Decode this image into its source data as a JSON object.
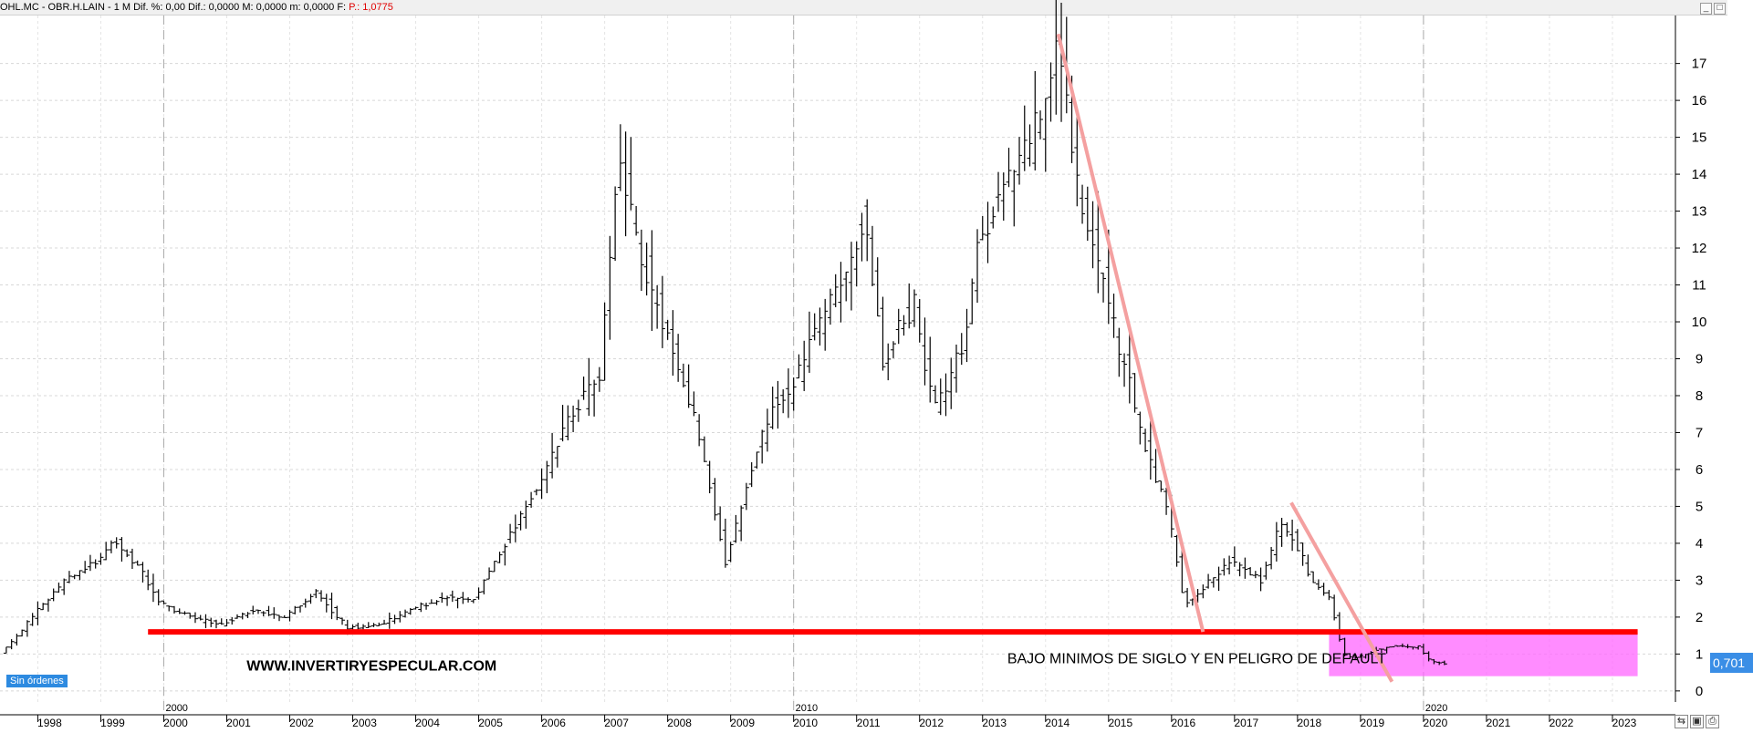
{
  "header": {
    "symbol": "OHL.MC - OBR.H.LAIN -",
    "timeframe": "1 M",
    "dif_pct": "Dif. %: 0,00",
    "dif": "Dif.: 0,0000",
    "max": "M: 0,0000",
    "min": "m: 0,0000",
    "f": "F:",
    "price": "P.: 1,0775"
  },
  "badge": "Sin órdenes",
  "price_tag": "0,701",
  "colors": {
    "support_line": "#ff0000",
    "trend_line": "#f4a0a0",
    "zone": "#ff66ff",
    "price_tag": "#3a8ee6",
    "bars": "#000000"
  },
  "chart_data": {
    "type": "ohlc",
    "timeframe": "monthly",
    "y_ticks": [
      0,
      1,
      2,
      3,
      4,
      5,
      6,
      7,
      8,
      9,
      10,
      11,
      12,
      13,
      14,
      15,
      16,
      17
    ],
    "ylim": [
      -0.3,
      18.3
    ],
    "x_tick_labels": [
      "1998",
      "1999",
      "2000",
      "2001",
      "2002",
      "2003",
      "2004",
      "2005",
      "2006",
      "2007",
      "2008",
      "2009",
      "2010",
      "2011",
      "2012",
      "2013",
      "2014",
      "2015",
      "2016",
      "2017",
      "2018",
      "2019",
      "2020",
      "2021",
      "2022",
      "2023"
    ],
    "decade_labels": [
      "2000",
      "2010",
      "2020"
    ],
    "xlim": [
      1997.4,
      2024.0
    ],
    "grid": true,
    "approx_path": [
      [
        1997.5,
        1.0
      ],
      [
        1998.0,
        2.0
      ],
      [
        1998.5,
        3.0
      ],
      [
        1999.0,
        3.5
      ],
      [
        1999.3,
        4.1
      ],
      [
        1999.7,
        3.3
      ],
      [
        2000.0,
        2.4
      ],
      [
        2000.5,
        2.0
      ],
      [
        2001.0,
        1.8
      ],
      [
        2001.5,
        2.2
      ],
      [
        2002.0,
        2.0
      ],
      [
        2002.5,
        2.7
      ],
      [
        2003.0,
        1.7
      ],
      [
        2003.5,
        1.8
      ],
      [
        2004.0,
        2.2
      ],
      [
        2004.5,
        2.5
      ],
      [
        2005.0,
        2.5
      ],
      [
        2005.5,
        4.0
      ],
      [
        2006.0,
        5.5
      ],
      [
        2006.5,
        7.3
      ],
      [
        2007.0,
        8.5
      ],
      [
        2007.3,
        14.2
      ],
      [
        2007.7,
        11.5
      ],
      [
        2008.0,
        10.0
      ],
      [
        2008.5,
        7.5
      ],
      [
        2009.0,
        3.5
      ],
      [
        2009.5,
        6.5
      ],
      [
        2009.8,
        8.0
      ],
      [
        2010.0,
        8.0
      ],
      [
        2010.5,
        10.0
      ],
      [
        2011.0,
        11.5
      ],
      [
        2011.2,
        13.0
      ],
      [
        2011.5,
        9.0
      ],
      [
        2012.0,
        10.5
      ],
      [
        2012.3,
        7.6
      ],
      [
        2012.8,
        9.5
      ],
      [
        2013.0,
        12.0
      ],
      [
        2013.5,
        14.0
      ],
      [
        2014.0,
        15.5
      ],
      [
        2014.3,
        17.5
      ],
      [
        2014.6,
        13.5
      ],
      [
        2015.0,
        11.0
      ],
      [
        2015.3,
        9.0
      ],
      [
        2015.6,
        7.0
      ],
      [
        2016.0,
        5.0
      ],
      [
        2016.3,
        2.3
      ],
      [
        2016.7,
        3.0
      ],
      [
        2017.0,
        3.5
      ],
      [
        2017.5,
        3.0
      ],
      [
        2017.8,
        4.5
      ],
      [
        2018.0,
        4.2
      ],
      [
        2018.3,
        3.0
      ],
      [
        2018.6,
        2.5
      ],
      [
        2018.8,
        1.0
      ],
      [
        2019.0,
        0.9
      ],
      [
        2019.5,
        1.2
      ],
      [
        2020.0,
        1.2
      ],
      [
        2020.2,
        0.8
      ],
      [
        2020.4,
        0.75
      ]
    ],
    "support_level": 1.6,
    "trendlines": [
      {
        "from": [
          2014.2,
          17.8
        ],
        "to": [
          2016.5,
          1.6
        ]
      },
      {
        "from": [
          2017.9,
          5.1
        ],
        "to": [
          2019.5,
          0.25
        ]
      }
    ],
    "zone": {
      "x_range": [
        2018.5,
        2023.4
      ],
      "y_range": [
        0.4,
        1.6
      ]
    },
    "last_value": 0.701,
    "annotations": [
      {
        "text": "WWW.INVERTIRYESPECULAR.COM",
        "x": 2003.3,
        "y": 0.55
      },
      {
        "text": "BAJO MINIMOS DE SIGLO Y EN PELIGRO DE DEFAULT",
        "x": 2016.4,
        "y": 0.75
      }
    ]
  }
}
